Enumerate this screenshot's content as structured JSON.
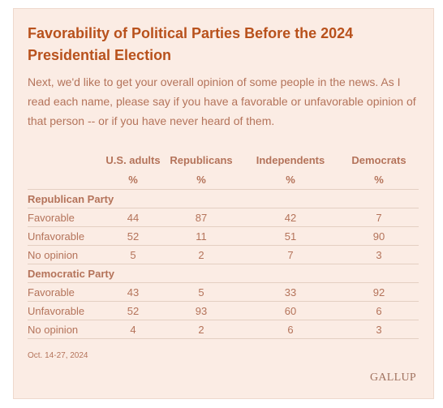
{
  "title": "Favorability of Political Parties Before the 2024 Presidential Election",
  "description": "Next, we'd like to get your overall opinion of some people in the news. As I read each name, please say if you have a favorable or unfavorable opinion of that person -- or if you have never heard of them.",
  "columns": [
    "U.S. adults",
    "Republicans",
    "Independents",
    "Democrats"
  ],
  "unit": "%",
  "groups": [
    {
      "name": "Republican Party",
      "rows": [
        {
          "label": "Favorable",
          "values": [
            "44",
            "87",
            "42",
            "7"
          ]
        },
        {
          "label": "Unfavorable",
          "values": [
            "52",
            "11",
            "51",
            "90"
          ]
        },
        {
          "label": "No opinion",
          "values": [
            "5",
            "2",
            "7",
            "3"
          ]
        }
      ]
    },
    {
      "name": "Democratic Party",
      "rows": [
        {
          "label": "Favorable",
          "values": [
            "43",
            "5",
            "33",
            "92"
          ]
        },
        {
          "label": "Unfavorable",
          "values": [
            "52",
            "93",
            "60",
            "6"
          ]
        },
        {
          "label": "No opinion",
          "values": [
            "4",
            "2",
            "6",
            "3"
          ]
        }
      ]
    }
  ],
  "date": "Oct. 14-27, 2024",
  "source_logo": "GALLUP"
}
